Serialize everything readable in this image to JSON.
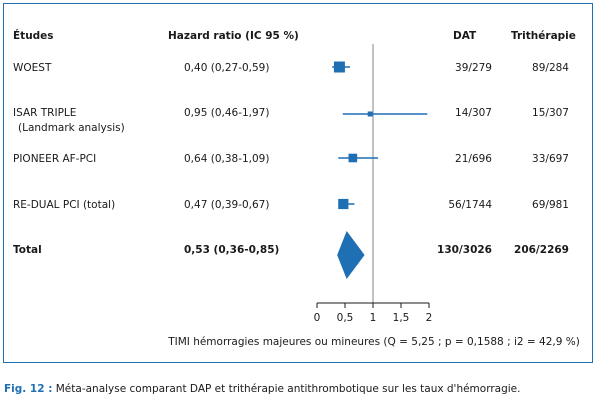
{
  "headers": {
    "studies": "Études",
    "hr": "Hazard ratio (IC 95 %)",
    "dat": "DAT",
    "triple": "Trithérapie"
  },
  "rows": [
    {
      "name": "WOEST",
      "sub": "",
      "ci_text": "0,40 (0,27-0,59)",
      "dat": "39/279",
      "triple": "89/284"
    },
    {
      "name": "ISAR TRIPLE",
      "sub": "(Landmark analysis)",
      "ci_text": "0,95 (0,46-1,97)",
      "dat": "14/307",
      "triple": "15/307"
    },
    {
      "name": "PIONEER AF-PCI",
      "sub": "",
      "ci_text": "0,64 (0,38-1,09)",
      "dat": "21/696",
      "triple": "33/697"
    },
    {
      "name": "RE-DUAL PCI (total)",
      "sub": "",
      "ci_text": "0,47 (0,39-0,67)",
      "dat": "56/1744",
      "triple": "69/981"
    }
  ],
  "total": {
    "name": "Total",
    "ci_text": "0,53 (0,36-0,85)",
    "dat": "130/3026",
    "triple": "206/2269"
  },
  "axis_caption": "TIMI hémorragies majeures ou mineures (Q = 5,25 ; p = 0,1588 ; i2 = 42,9 %)",
  "caption_label": "Fig. 12 :",
  "caption_text": "Méta-analyse comparant DAP et trithérapie antithrombotique sur les taux d'hémorragie.",
  "colors": {
    "marker": "#1f6fb5",
    "frame": "#1f6fb5",
    "refline": "#9a9a9a"
  },
  "chart_data": {
    "type": "forest",
    "xlim": [
      0,
      2
    ],
    "ticks": [
      0,
      0.5,
      1,
      1.5,
      2
    ],
    "tick_labels": [
      "0",
      "0,5",
      "1",
      "1,5",
      "2"
    ],
    "reference_line": 1,
    "studies": [
      {
        "name": "WOEST",
        "hr": 0.4,
        "lo": 0.27,
        "hi": 0.59,
        "weight": 1.0
      },
      {
        "name": "ISAR TRIPLE",
        "hr": 0.95,
        "lo": 0.46,
        "hi": 1.97,
        "weight": 0.25
      },
      {
        "name": "PIONEER AF-PCI",
        "hr": 0.64,
        "lo": 0.38,
        "hi": 1.09,
        "weight": 0.7
      },
      {
        "name": "RE-DUAL PCI (total)",
        "hr": 0.47,
        "lo": 0.39,
        "hi": 0.67,
        "weight": 0.9
      }
    ],
    "pooled": {
      "name": "Total",
      "hr": 0.53,
      "lo": 0.36,
      "hi": 0.85
    }
  }
}
